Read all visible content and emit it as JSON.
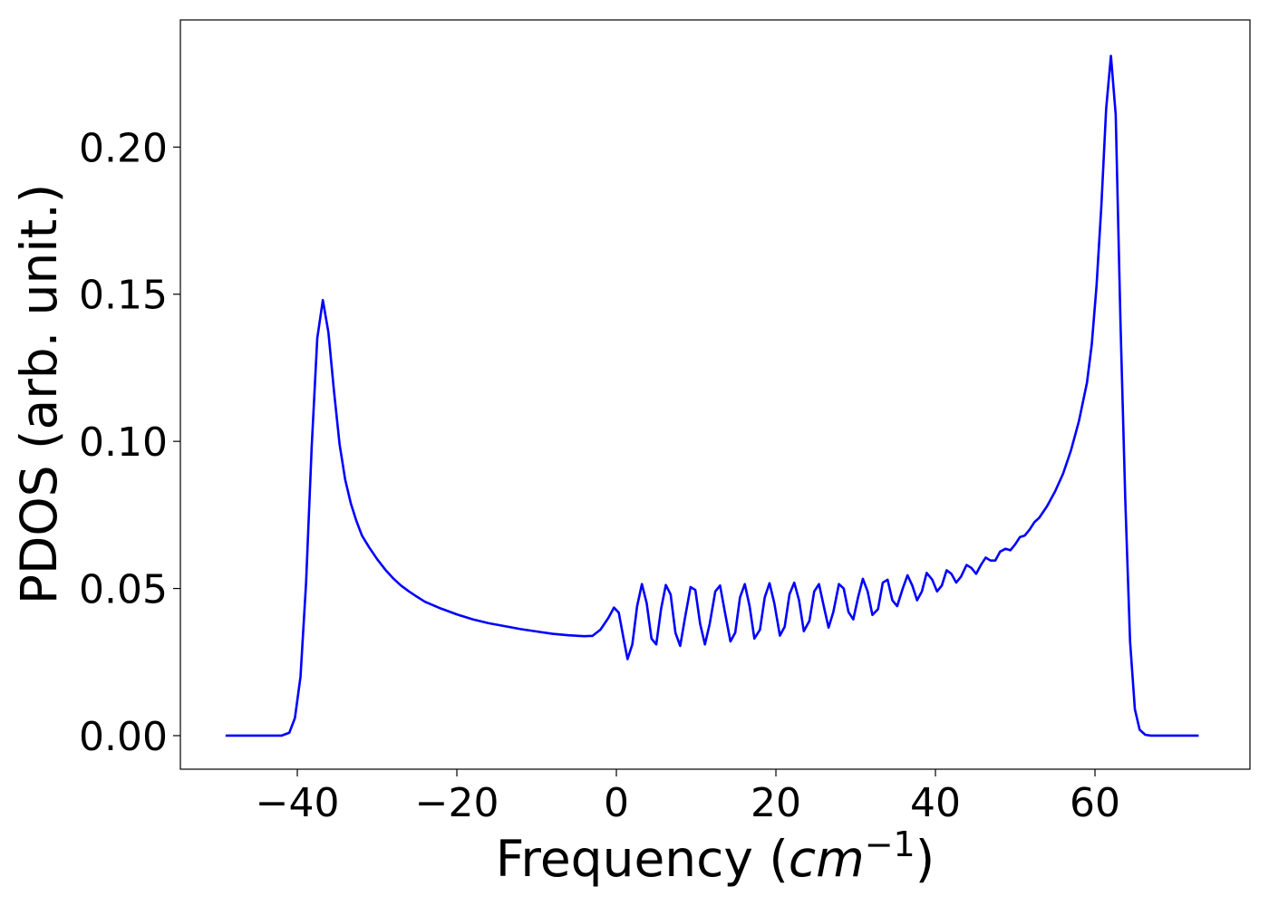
{
  "chart_data": {
    "type": "line",
    "xlabel": [
      "Frequency (",
      "cm",
      "−1",
      ")"
    ],
    "ylabel": "PDOS (arb. unit.)",
    "color": "#0000ff",
    "x": [
      -49,
      -42,
      -41,
      -40.3,
      -39.6,
      -38.9,
      -38.2,
      -37.5,
      -36.8,
      -36.1,
      -35.4,
      -34.7,
      -34,
      -33.3,
      -32.6,
      -31.9,
      -31,
      -30,
      -29,
      -28,
      -27,
      -26,
      -25,
      -24,
      -22,
      -20,
      -18,
      -16,
      -14,
      -12,
      -10,
      -8,
      -6,
      -4,
      -3,
      -2,
      -1,
      -0.3,
      0.3,
      0.9,
      1.4,
      2.0,
      2.6,
      3.2,
      3.8,
      4.4,
      5.0,
      5.6,
      6.2,
      6.8,
      7.4,
      8.0,
      8.6,
      9.3,
      9.9,
      10.5,
      11.1,
      11.7,
      12.4,
      13.0,
      13.6,
      14.3,
      14.9,
      15.5,
      16.1,
      16.7,
      17.3,
      18.0,
      18.6,
      19.2,
      19.8,
      20.5,
      21.1,
      21.7,
      22.3,
      22.9,
      23.5,
      24.2,
      24.8,
      25.4,
      26.0,
      26.6,
      27.2,
      27.9,
      28.5,
      29.1,
      29.7,
      30.3,
      30.9,
      31.5,
      32.1,
      32.8,
      33.4,
      34.0,
      34.6,
      35.2,
      35.9,
      36.5,
      37.1,
      37.7,
      38.3,
      38.9,
      39.6,
      40.2,
      40.8,
      41.4,
      42.0,
      42.6,
      43.2,
      43.9,
      44.5,
      45.1,
      45.7,
      46.3,
      46.9,
      47.5,
      48.1,
      48.8,
      49.4,
      50.0,
      50.6,
      51.2,
      51.8,
      52.4,
      53.0,
      54,
      55,
      56,
      57,
      58,
      59,
      59.6,
      60.2,
      60.8,
      61.4,
      62.0,
      62.6,
      63.2,
      63.8,
      64.4,
      65.0,
      65.6,
      66.3,
      67,
      73
    ],
    "values": [
      0,
      0,
      0.001,
      0.006,
      0.02,
      0.052,
      0.098,
      0.135,
      0.148,
      0.137,
      0.117,
      0.099,
      0.087,
      0.079,
      0.073,
      0.068,
      0.064,
      0.06,
      0.0565,
      0.0535,
      0.051,
      0.049,
      0.0472,
      0.0455,
      0.0432,
      0.0412,
      0.0395,
      0.0382,
      0.0372,
      0.0362,
      0.0354,
      0.0346,
      0.0341,
      0.0338,
      0.0339,
      0.036,
      0.04,
      0.0435,
      0.0418,
      0.033,
      0.026,
      0.031,
      0.044,
      0.0515,
      0.045,
      0.033,
      0.031,
      0.043,
      0.0512,
      0.048,
      0.035,
      0.0305,
      0.04,
      0.0505,
      0.0495,
      0.038,
      0.031,
      0.038,
      0.049,
      0.051,
      0.042,
      0.032,
      0.035,
      0.047,
      0.0515,
      0.044,
      0.033,
      0.036,
      0.047,
      0.0518,
      0.045,
      0.034,
      0.037,
      0.048,
      0.052,
      0.046,
      0.0355,
      0.039,
      0.049,
      0.0515,
      0.044,
      0.0367,
      0.042,
      0.0515,
      0.05,
      0.042,
      0.0395,
      0.047,
      0.0533,
      0.049,
      0.041,
      0.043,
      0.052,
      0.053,
      0.046,
      0.044,
      0.05,
      0.0545,
      0.051,
      0.046,
      0.049,
      0.0553,
      0.053,
      0.049,
      0.051,
      0.0562,
      0.055,
      0.052,
      0.054,
      0.058,
      0.057,
      0.055,
      0.058,
      0.0605,
      0.0595,
      0.0595,
      0.0625,
      0.0635,
      0.063,
      0.065,
      0.0675,
      0.068,
      0.07,
      0.0725,
      0.074,
      0.078,
      0.083,
      0.089,
      0.097,
      0.107,
      0.12,
      0.133,
      0.153,
      0.18,
      0.213,
      0.231,
      0.211,
      0.14,
      0.08,
      0.032,
      0.009,
      0.002,
      0.0003,
      0,
      0
    ],
    "xlim": [
      -54.66,
      79.43
    ],
    "ylim": [
      -0.0114,
      0.2432
    ],
    "xticks": [
      {
        "value": -40,
        "label": "−40"
      },
      {
        "value": -20,
        "label": "−20"
      },
      0,
      20,
      40,
      60
    ],
    "yticks": [
      {
        "value": 0,
        "label": "0.00"
      },
      {
        "value": 0.05,
        "label": "0.05"
      },
      {
        "value": 0.1,
        "label": "0.10"
      },
      {
        "value": 0.15,
        "label": "0.15"
      },
      {
        "value": 0.2,
        "label": "0.20"
      }
    ]
  }
}
